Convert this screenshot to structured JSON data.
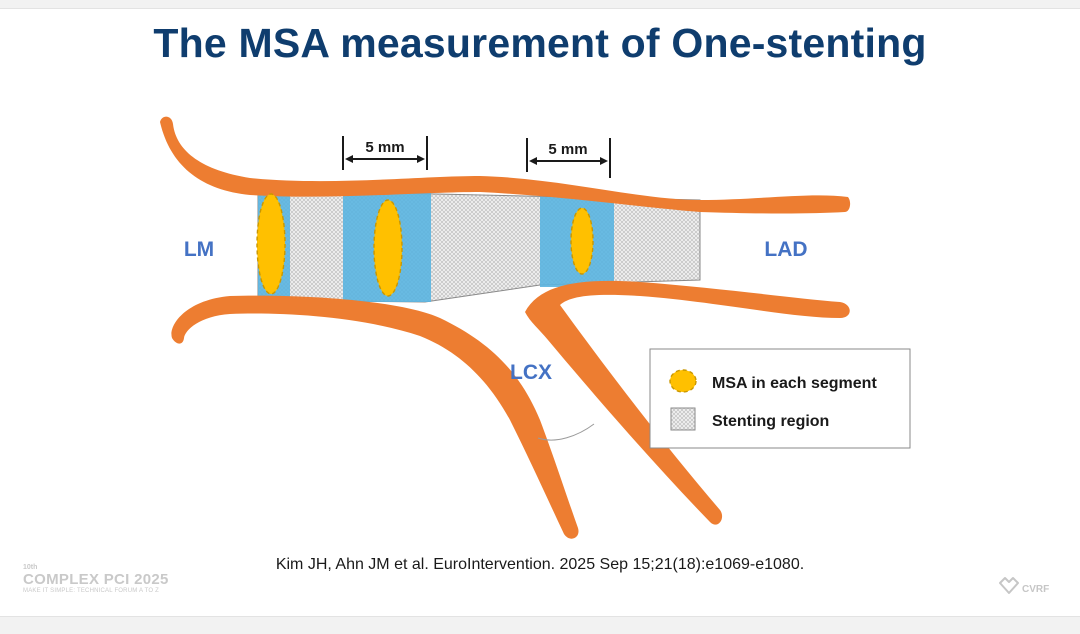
{
  "slide": {
    "title": "The MSA measurement of One-stenting",
    "citation": "Kim JH, Ahn JM et al. EuroIntervention. 2025 Sep 15;21(18):e1069-e1080."
  },
  "diagram": {
    "labels": {
      "lm": "LM",
      "lad": "LAD",
      "lcx": "LCX"
    },
    "dimensions": [
      {
        "label": "5 mm"
      },
      {
        "label": "5 mm"
      }
    ],
    "legend": {
      "items": [
        {
          "icon": "msa-ellipse-icon",
          "label": "MSA in each segment"
        },
        {
          "icon": "stent-mesh-icon",
          "label": "Stenting region"
        }
      ]
    },
    "colors": {
      "vessel": "#ed7d31",
      "msa_segment": "#5ab4e0",
      "msa_marker": "#ffc000",
      "label_blue": "#4472c4",
      "title": "#0f3d6e"
    }
  },
  "branding": {
    "edition": "10th",
    "name": "COMPLEX PCI 2025",
    "tagline": "MAKE IT SIMPLE: TECHNICAL FORUM A TO Z",
    "org": "CVRF"
  }
}
